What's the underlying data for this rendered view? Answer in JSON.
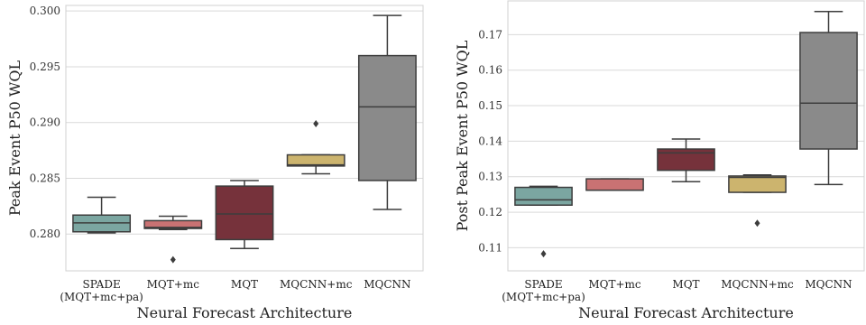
{
  "chart_data": [
    {
      "type": "box",
      "xlabel": "Neural Forecast Architecture",
      "ylabel": "Peak Event P50 WQL",
      "ylim": [
        0.2767,
        0.3005
      ],
      "yticks": [
        "0.280",
        "0.285",
        "0.290",
        "0.295",
        "0.300"
      ],
      "ytick_values": [
        0.28,
        0.285,
        0.29,
        0.295,
        0.3
      ],
      "grid": "horizontal",
      "categories": [
        {
          "label_lines": [
            "SPADE",
            "(MQT+mc+pa)"
          ],
          "color": "#7BA6A1",
          "whisker_low": 0.2801,
          "q1": 0.2802,
          "median": 0.281,
          "q3": 0.2817,
          "whisker_high": 0.2833,
          "outliers": []
        },
        {
          "label_lines": [
            "MQT+mc"
          ],
          "color": "#C97273",
          "whisker_low": 0.2804,
          "q1": 0.2805,
          "median": 0.2806,
          "q3": 0.2812,
          "whisker_high": 0.2816,
          "outliers": [
            0.2777
          ]
        },
        {
          "label_lines": [
            "MQT"
          ],
          "color": "#76323B",
          "whisker_low": 0.2787,
          "q1": 0.2795,
          "median": 0.2818,
          "q3": 0.2843,
          "whisker_high": 0.2848,
          "outliers": []
        },
        {
          "label_lines": [
            "MQCNN+mc"
          ],
          "color": "#CCB46E",
          "whisker_low": 0.2854,
          "q1": 0.2861,
          "median": 0.2862,
          "q3": 0.2871,
          "whisker_high": 0.2871,
          "outliers": [
            0.2899
          ]
        },
        {
          "label_lines": [
            "MQCNN"
          ],
          "color": "#8A8A8A",
          "whisker_low": 0.2822,
          "q1": 0.2848,
          "median": 0.2914,
          "q3": 0.296,
          "whisker_high": 0.2996,
          "outliers": []
        }
      ]
    },
    {
      "type": "box",
      "xlabel": "Neural Forecast Architecture",
      "ylabel": "Post Peak Event P50 WQL",
      "ylim": [
        0.1035,
        0.1795
      ],
      "yticks": [
        "0.11",
        "0.12",
        "0.13",
        "0.14",
        "0.15",
        "0.16",
        "0.17"
      ],
      "ytick_values": [
        0.11,
        0.12,
        0.13,
        0.14,
        0.15,
        0.16,
        0.17
      ],
      "grid": "horizontal",
      "categories": [
        {
          "label_lines": [
            "SPADE",
            "(MQT+mc+pa)"
          ],
          "color": "#7BA6A1",
          "whisker_low": 0.122,
          "q1": 0.122,
          "median": 0.1235,
          "q3": 0.127,
          "whisker_high": 0.1273,
          "outliers": [
            0.1083
          ]
        },
        {
          "label_lines": [
            "MQT+mc"
          ],
          "color": "#C97273",
          "whisker_low": 0.1262,
          "q1": 0.1262,
          "median": 0.1262,
          "q3": 0.1294,
          "whisker_high": 0.1294,
          "outliers": []
        },
        {
          "label_lines": [
            "MQT"
          ],
          "color": "#76323B",
          "whisker_low": 0.1286,
          "q1": 0.1318,
          "median": 0.1367,
          "q3": 0.1378,
          "whisker_high": 0.1406,
          "outliers": []
        },
        {
          "label_lines": [
            "MQCNN+mc"
          ],
          "color": "#CCB46E",
          "whisker_low": 0.1256,
          "q1": 0.1256,
          "median": 0.1298,
          "q3": 0.1302,
          "whisker_high": 0.1305,
          "outliers": [
            0.1169
          ]
        },
        {
          "label_lines": [
            "MQCNN"
          ],
          "color": "#8A8A8A",
          "whisker_low": 0.1278,
          "q1": 0.1378,
          "median": 0.1507,
          "q3": 0.1706,
          "whisker_high": 0.1765,
          "outliers": []
        }
      ]
    }
  ]
}
